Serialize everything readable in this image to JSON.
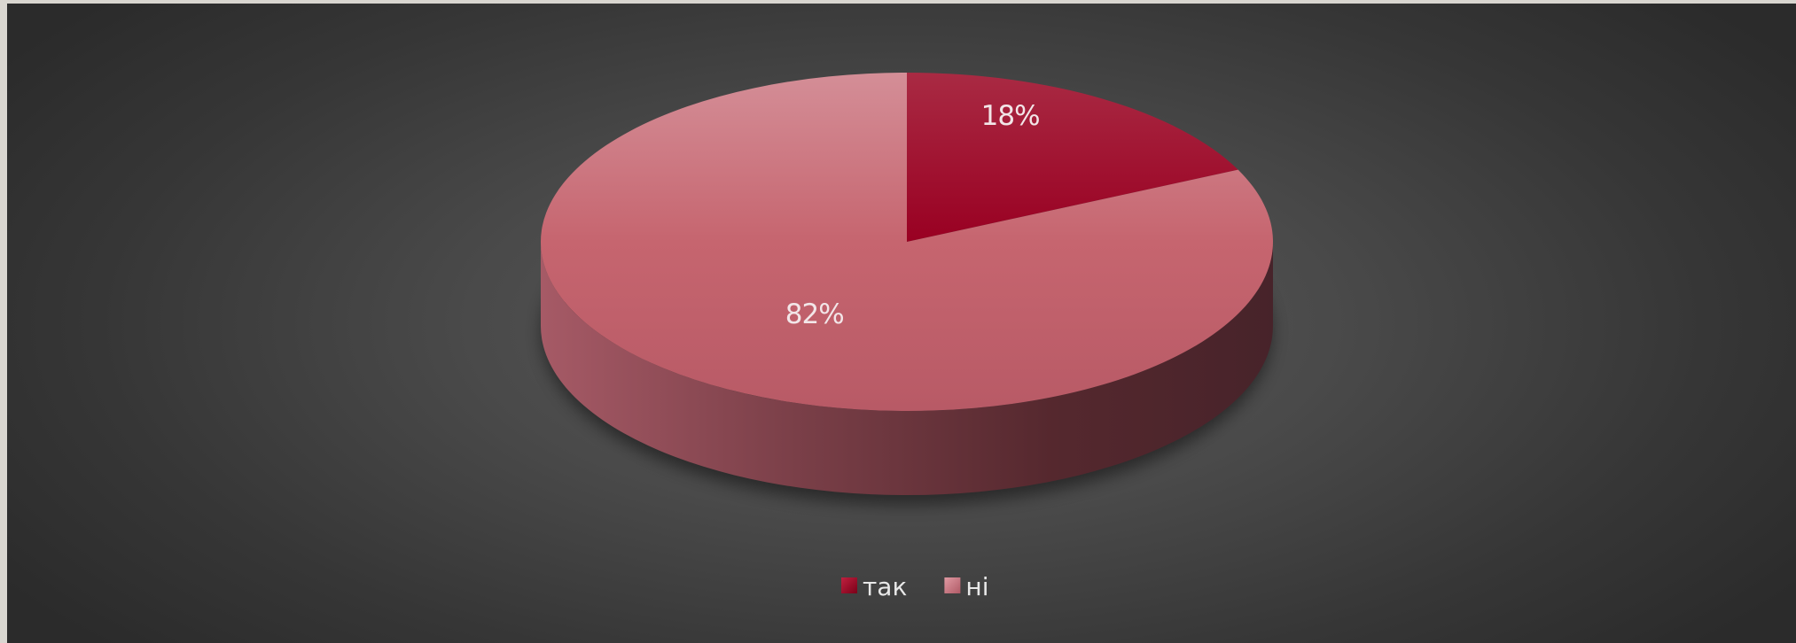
{
  "chart_data": {
    "type": "pie",
    "style": "3d",
    "title": "",
    "categories": [
      "так",
      "ні"
    ],
    "values": [
      18,
      82
    ],
    "data_labels": [
      "18%",
      "82%"
    ],
    "colors": [
      "#a5102e",
      "#cc6b78"
    ],
    "start_angle_deg": 0,
    "direction": "clockwise",
    "legend": {
      "position": "bottom",
      "entries": [
        "так",
        "ні"
      ]
    }
  }
}
